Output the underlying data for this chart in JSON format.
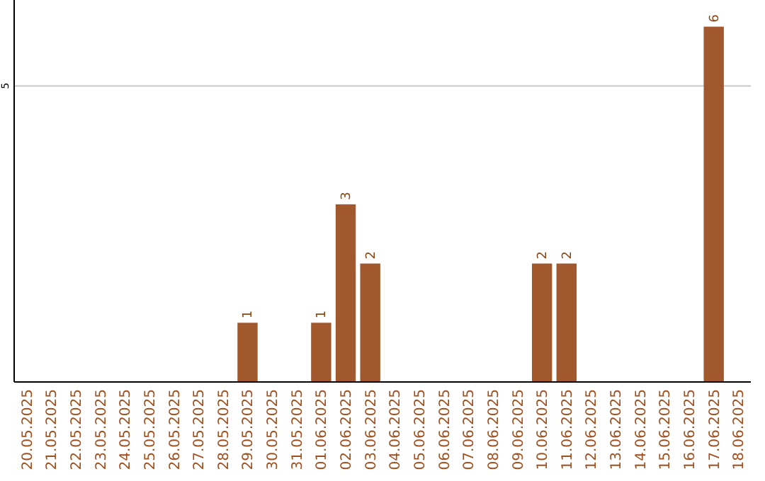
{
  "chart_data": {
    "type": "bar",
    "categories": [
      "20.05.2025",
      "21.05.2025",
      "22.05.2025",
      "23.05.2025",
      "24.05.2025",
      "25.05.2025",
      "26.05.2025",
      "27.05.2025",
      "28.05.2025",
      "29.05.2025",
      "30.05.2025",
      "31.05.2025",
      "01.06.2025",
      "02.06.2025",
      "03.06.2025",
      "04.06.2025",
      "05.06.2025",
      "06.06.2025",
      "07.06.2025",
      "08.06.2025",
      "09.06.2025",
      "10.06.2025",
      "11.06.2025",
      "12.06.2025",
      "13.06.2025",
      "14.06.2025",
      "15.06.2025",
      "16.06.2025",
      "17.06.2025",
      "18.06.2025"
    ],
    "values": [
      0,
      0,
      0,
      0,
      0,
      0,
      0,
      0,
      0,
      1,
      0,
      0,
      1,
      3,
      2,
      0,
      0,
      0,
      0,
      0,
      0,
      2,
      2,
      0,
      0,
      0,
      0,
      0,
      6,
      0
    ],
    "value_labels": [
      null,
      null,
      null,
      null,
      null,
      null,
      null,
      null,
      null,
      "1",
      null,
      null,
      "1",
      "3",
      "2",
      null,
      null,
      null,
      null,
      null,
      null,
      "2",
      "2",
      null,
      null,
      null,
      null,
      null,
      "6",
      null
    ],
    "color": "#a0582c",
    "ylim": [
      0,
      6.45
    ],
    "yticks": [
      5
    ],
    "grid": "y"
  }
}
